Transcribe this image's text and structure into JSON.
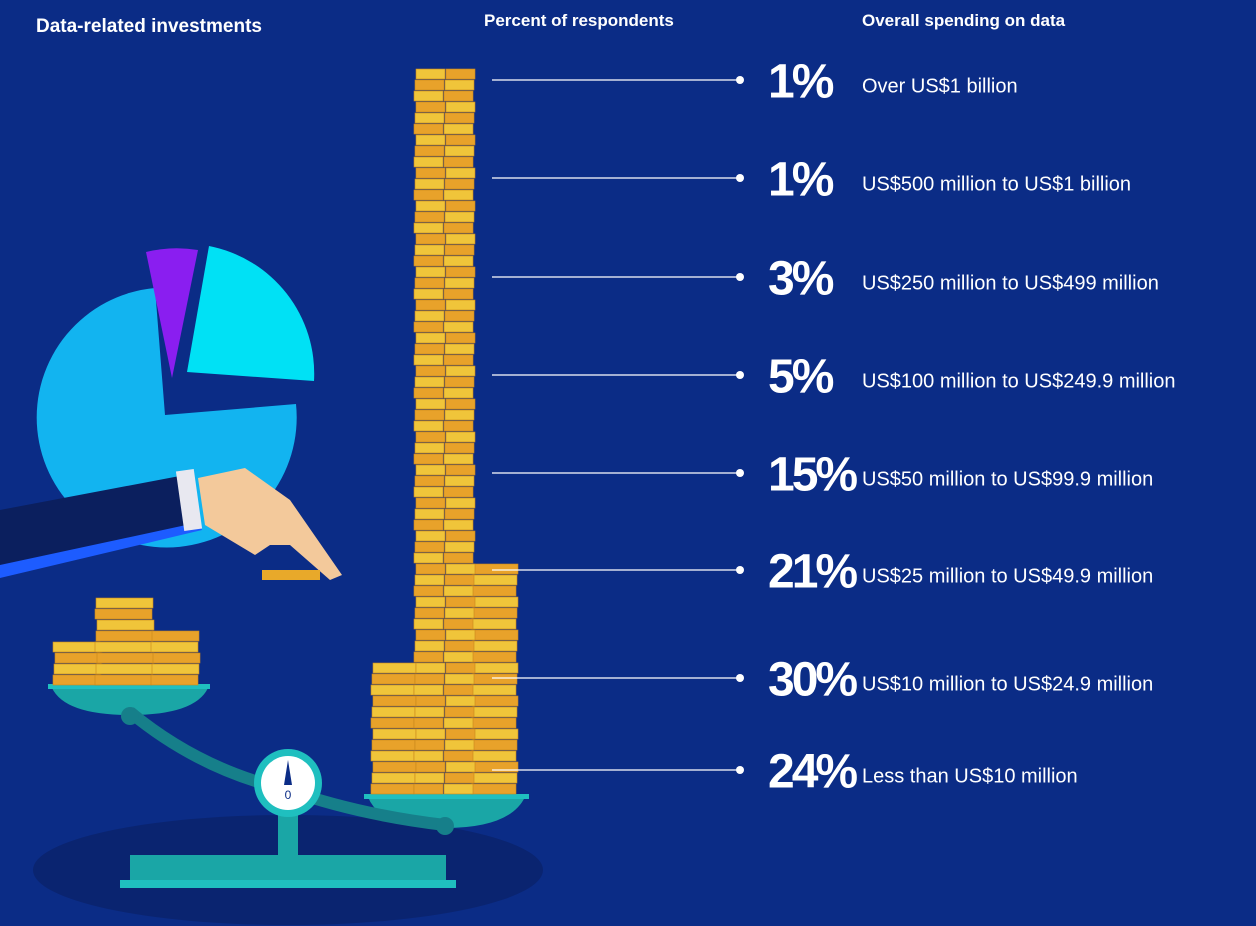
{
  "header": {
    "title": "Data-related investments",
    "column_1": "Percent of respondents",
    "column_2": "Overall spending on data"
  },
  "rows": [
    {
      "percent": "1%",
      "label": "Over US$1 billion"
    },
    {
      "percent": "1%",
      "label": "US$500 million to US$1 billion"
    },
    {
      "percent": "3%",
      "label": "US$250 million to US$499 million"
    },
    {
      "percent": "5%",
      "label": "US$100 million to US$249.9 million"
    },
    {
      "percent": "15%",
      "label": "US$50 million to US$99.9 million"
    },
    {
      "percent": "21%",
      "label": "US$25 million to US$49.9 million"
    },
    {
      "percent": "30%",
      "label": "US$10 million to US$24.9 million"
    },
    {
      "percent": "24%",
      "label": "Less than US$10 million"
    }
  ],
  "gauge_label": "0"
}
